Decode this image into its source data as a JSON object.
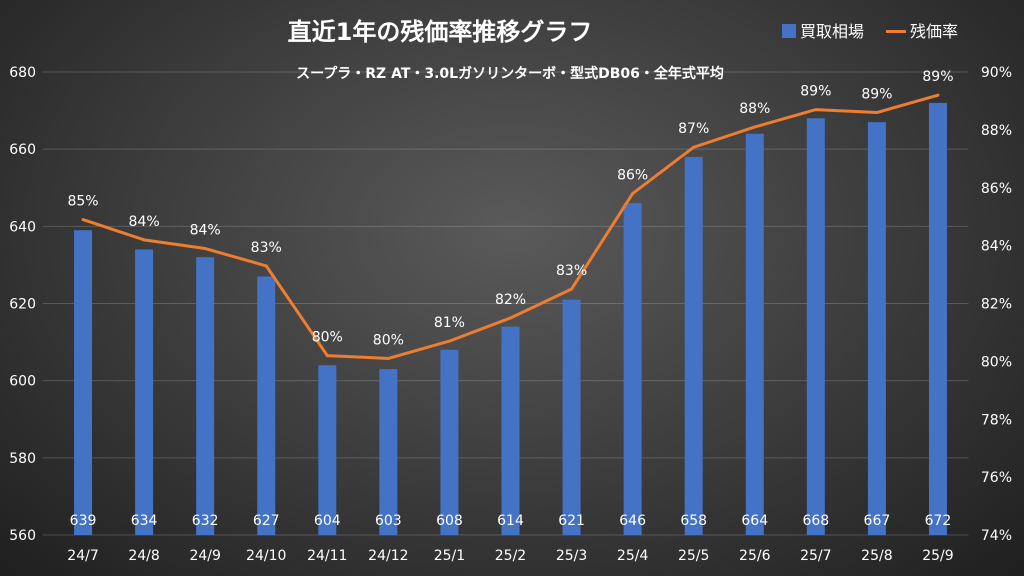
{
  "chart_data": {
    "type": "bar+line",
    "title": "直近1年の残価率推移グラフ",
    "subtitle": "スープラ・RZ AT・3.0Lガソリンターボ・型式DB06・全年式平均",
    "categories": [
      "24/7",
      "24/8",
      "24/9",
      "24/10",
      "24/11",
      "24/12",
      "25/1",
      "25/2",
      "25/3",
      "25/4",
      "25/5",
      "25/6",
      "25/7",
      "25/8",
      "25/9"
    ],
    "series": [
      {
        "name": "買取相場",
        "type": "bar",
        "axis": "left",
        "color": "#4472C4",
        "values": [
          639,
          634,
          632,
          627,
          604,
          603,
          608,
          614,
          621,
          646,
          658,
          664,
          668,
          667,
          672
        ]
      },
      {
        "name": "残価率",
        "type": "line",
        "axis": "right",
        "color": "#ED7D31",
        "values": [
          84.9,
          84.2,
          83.9,
          83.3,
          80.2,
          80.1,
          80.7,
          81.5,
          82.5,
          85.8,
          87.4,
          88.1,
          88.7,
          88.6,
          89.2
        ],
        "labels": [
          "85%",
          "84%",
          "84%",
          "83%",
          "80%",
          "80%",
          "81%",
          "82%",
          "83%",
          "86%",
          "87%",
          "88%",
          "89%",
          "89%",
          "89%"
        ]
      }
    ],
    "ylim": [
      560,
      680
    ],
    "yticks": [
      "560",
      "580",
      "600",
      "620",
      "640",
      "660",
      "680"
    ],
    "y2lim": [
      74,
      90
    ],
    "y2ticks": [
      "74%",
      "76%",
      "78%",
      "80%",
      "82%",
      "84%",
      "86%",
      "88%",
      "90%"
    ],
    "legend": "top-right",
    "grid": true
  }
}
